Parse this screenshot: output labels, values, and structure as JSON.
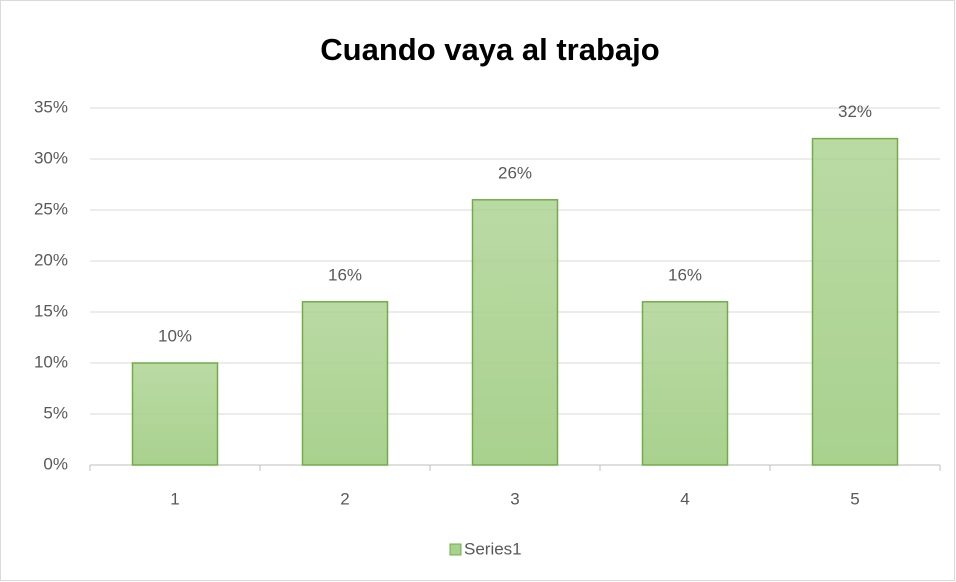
{
  "chart_data": {
    "type": "bar",
    "title": "Cuando vaya al trabajo",
    "categories": [
      "1",
      "2",
      "3",
      "4",
      "5"
    ],
    "series": [
      {
        "name": "Series1",
        "color": "#a9d18e",
        "values": [
          10,
          16,
          26,
          16,
          32
        ],
        "value_labels": [
          "10%",
          "16%",
          "26%",
          "16%",
          "32%"
        ]
      }
    ],
    "ylim": [
      0,
      35
    ],
    "yticks": [
      {
        "value": 0,
        "label": "0%"
      },
      {
        "value": 5,
        "label": "5%"
      },
      {
        "value": 10,
        "label": "10%"
      },
      {
        "value": 15,
        "label": "15%"
      },
      {
        "value": 20,
        "label": "20%"
      },
      {
        "value": 25,
        "label": "25%"
      },
      {
        "value": 30,
        "label": "30%"
      },
      {
        "value": 35,
        "label": "35%"
      }
    ],
    "grid": true,
    "legend": "bottom"
  }
}
